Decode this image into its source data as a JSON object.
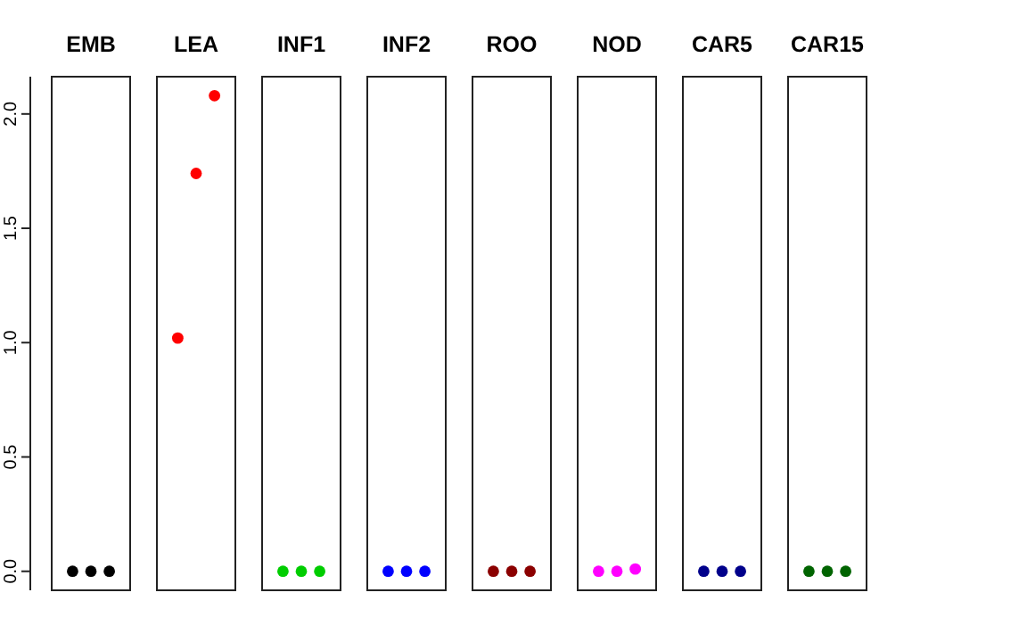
{
  "chart_data": {
    "type": "scatter",
    "categories": [
      "EMB",
      "LEA",
      "INF1",
      "INF2",
      "ROO",
      "NOD",
      "CAR5",
      "CAR15"
    ],
    "marker": "circle",
    "ylim": [
      -0.083,
      2.163
    ],
    "yticks": [
      {
        "value": 0,
        "label": "0.0"
      },
      {
        "value": 0.5,
        "label": "0.5"
      },
      {
        "value": 1,
        "label": "1.0"
      },
      {
        "value": 1.5,
        "label": "1.5"
      },
      {
        "value": 2,
        "label": "2.0"
      }
    ],
    "series": [
      {
        "colors": [
          "#000000",
          "#ff0000",
          "#00cd00",
          "#0000ff",
          "#8b0000",
          "#ff00ff",
          "#00008b",
          "#006400"
        ],
        "values": [
          0,
          1.02,
          0,
          0,
          0,
          0,
          0,
          0
        ]
      },
      {
        "colors": [
          "#000000",
          "#ff0000",
          "#00cd00",
          "#0000ff",
          "#8b0000",
          "#ff00ff",
          "#00008b",
          "#006400"
        ],
        "values": [
          0,
          1.74,
          0,
          0,
          0,
          0,
          0,
          0
        ]
      },
      {
        "colors": [
          "#000000",
          "#ff0000",
          "#00cd00",
          "#0000ff",
          "#8b0000",
          "#ff00ff",
          "#00008b",
          "#006400"
        ],
        "values": [
          0,
          2.08,
          0,
          0,
          0,
          0.01,
          0,
          0
        ]
      }
    ]
  }
}
